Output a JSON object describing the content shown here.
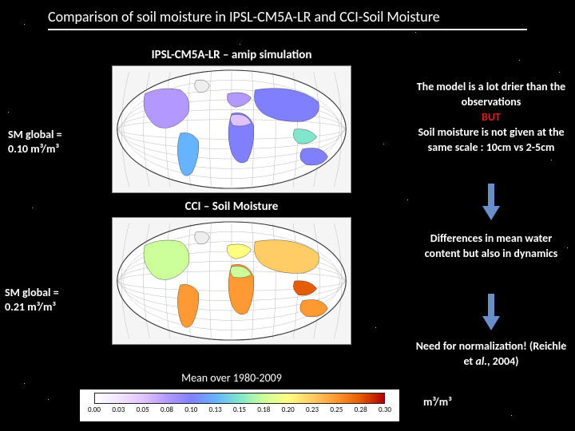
{
  "title": "Comparison of soil moisture in IPSL-CM5A-LR and CCI-Soil Moisture",
  "panels": {
    "top": {
      "subtitle": "IPSL-CM5A-LR – amip simulation",
      "sm_global_label": "SM global =",
      "sm_global_value": "0.10 m³/m³"
    },
    "bottom": {
      "subtitle": "CCI – Soil Moisture",
      "sm_global_label": "SM global =",
      "sm_global_value": "0.21 m³/m³"
    }
  },
  "mean_caption": "Mean over 1980-2009",
  "right": {
    "block1_a": "The model is a lot drier than the observations",
    "block1_but": "BUT",
    "block1_b": "Soil moisture is not given at the same scale : 10cm vs 2-5cm",
    "block2": "Differences in mean water content but also in dynamics",
    "block3": "Need for normalization! (Reichle et al., 2004)"
  },
  "colorbar": {
    "unit": "m³/m³",
    "ticks": [
      "0.00",
      "0.03",
      "0.05",
      "0.08",
      "0.10",
      "0.13",
      "0.15",
      "0.18",
      "0.20",
      "0.23",
      "0.25",
      "0.28",
      "0.30"
    ],
    "colors": [
      "#ffffff",
      "#f2e6ff",
      "#e0c2ff",
      "#b399ff",
      "#8080ff",
      "#66b3ff",
      "#80e6cc",
      "#ccff99",
      "#ffff80",
      "#ffcc66",
      "#ff9933",
      "#e65c00",
      "#b30000"
    ]
  },
  "arrow_color": "#6a8ecb",
  "globe": {
    "bg": "#f5f5f5",
    "ocean": "#ffffff",
    "grid": "#bbbbbb",
    "land_top_palette": [
      "#e0c2ff",
      "#b399ff",
      "#8080ff",
      "#66b3ff",
      "#80e6cc",
      "#ffff80",
      "#ffcc66"
    ],
    "land_bottom_palette": [
      "#66b3ff",
      "#80e6cc",
      "#ccff99",
      "#ffff80",
      "#ffcc66",
      "#ff9933",
      "#e65c00",
      "#b30000"
    ]
  },
  "stars": [
    [
      40,
      520
    ],
    [
      90,
      700
    ],
    [
      140,
      10
    ],
    [
      200,
      690
    ],
    [
      260,
      40
    ],
    [
      310,
      710
    ],
    [
      370,
      15
    ],
    [
      430,
      705
    ],
    [
      480,
      30
    ],
    [
      30,
      30
    ],
    [
      55,
      300
    ],
    [
      500,
      60
    ],
    [
      520,
      640
    ],
    [
      250,
      510
    ],
    [
      180,
      480
    ],
    [
      410,
      470
    ],
    [
      75,
      650
    ]
  ]
}
